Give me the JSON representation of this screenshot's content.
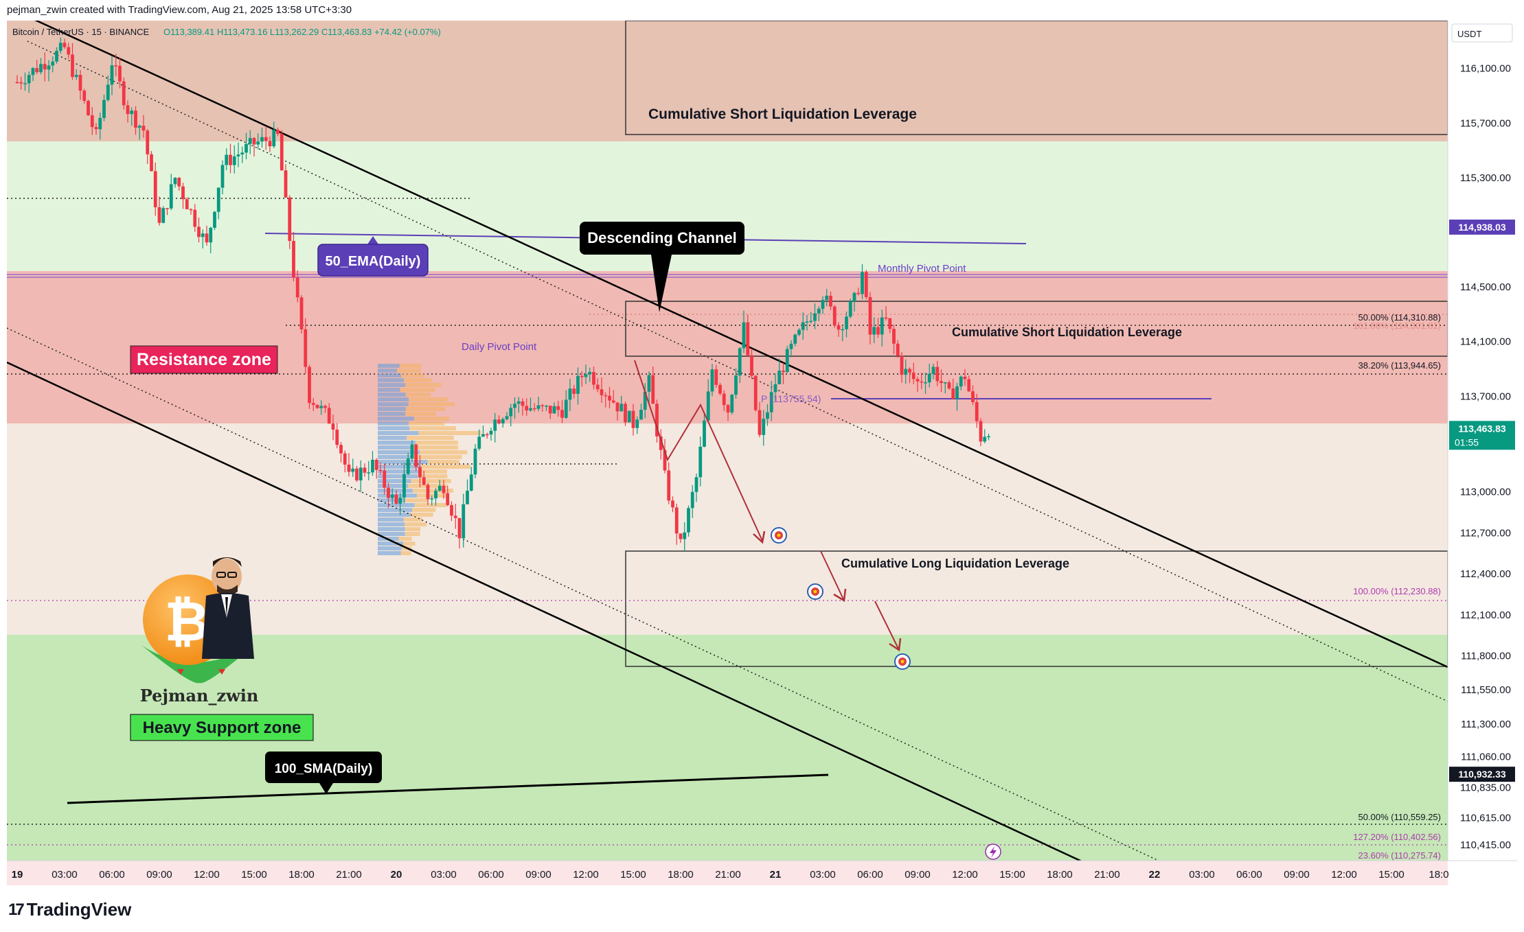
{
  "header": {
    "attribution": "pejman_zwin created with TradingView.com, Aug 21, 2025 13:58 UTC+3:30",
    "symbol": "Bitcoin / TetherUS · 15 · BINANCE",
    "ohlc": "O113,389.41 H113,473.16 L113,262.29 C113,463.83 +74.42 (+0.07%)"
  },
  "currency": "USDT",
  "brand": {
    "logo_glyph": "17",
    "name": "TradingView"
  },
  "price_axis": {
    "ticks": [
      "116,100.00",
      "115,700.00",
      "115,300.00",
      "114,500.00",
      "114,100.00",
      "113,700.00",
      "113,000.00",
      "112,700.00",
      "112,400.00",
      "112,100.00",
      "111,800.00",
      "111,550.00",
      "111,300.00",
      "111,060.00",
      "110,835.00",
      "110,615.00",
      "110,415.00"
    ],
    "badges": [
      {
        "price": "114,938.03",
        "color": "#5b3fb6"
      },
      {
        "price": "113,463.83",
        "sub": "01:55",
        "color": "#089981"
      },
      {
        "price": "110,932.33",
        "color": "#131722"
      }
    ]
  },
  "time_axis": [
    "19",
    "03:00",
    "06:00",
    "09:00",
    "12:00",
    "15:00",
    "18:00",
    "21:00",
    "20",
    "03:00",
    "06:00",
    "09:00",
    "12:00",
    "15:00",
    "18:00",
    "21:00",
    "21",
    "03:00",
    "06:00",
    "09:00",
    "12:00",
    "15:00",
    "18:00",
    "21:00",
    "22",
    "03:00",
    "06:00",
    "09:00",
    "12:00",
    "15:00",
    "18:0"
  ],
  "annotations": {
    "short_liq_top": "Cumulative Short Liquidation Leverage",
    "short_liq_mid": "Cumulative Short Liquidation Leverage",
    "long_liq": "Cumulative Long Liquidation Leverage",
    "descending_channel": "Descending Channel",
    "ema": "50_EMA(Daily)",
    "sma": "100_SMA(Daily)",
    "resistance": "Resistance zone",
    "support": "Heavy Support zone",
    "monthly_pivot": "Monthly Pivot Point",
    "daily_pivot": "Daily Pivot Point",
    "pivot_p": "P (113755.54)",
    "author": "Pejman_zwin",
    "coin_glyph": "₿",
    "fib": [
      "50.00% (114,310.88)",
      "38.20% (113,944.65)",
      "100.00% (112,230.88)",
      "50.00% (110,559.25)",
      "127.20% (110,402.56)",
      "23.60% (110,275.74)"
    ],
    "fib_faint": "161.80% (114,301.81)"
  },
  "colors": {
    "up": "#089981",
    "down": "#f23645",
    "resistance_fill": "#e9a9a6",
    "support_fill": "#c3e7b4",
    "ema_line": "#5b3fb6",
    "channel": "#000000"
  },
  "chart_data": {
    "type": "candlestick",
    "symbol": "Bitcoin / TetherUS",
    "interval": "15",
    "exchange": "BINANCE",
    "last": {
      "open": 113389.41,
      "high": 113473.16,
      "low": 113262.29,
      "close": 113463.83,
      "change": 74.42,
      "change_pct": 0.07
    },
    "ylim": [
      110300,
      116450
    ],
    "price_path": [
      [
        "19 00:00",
        116000
      ],
      [
        "19 03:00",
        116250
      ],
      [
        "19 05:00",
        115600
      ],
      [
        "19 06:00",
        116150
      ],
      [
        "19 07:00",
        115800
      ],
      [
        "19 08:00",
        115650
      ],
      [
        "19 09:00",
        114950
      ],
      [
        "19 10:00",
        115300
      ],
      [
        "19 12:00",
        114800
      ],
      [
        "19 13:00",
        115400
      ],
      [
        "19 15:00",
        115550
      ],
      [
        "19 16:30",
        115600
      ],
      [
        "19 17:30",
        114600
      ],
      [
        "19 18:30",
        113700
      ],
      [
        "19 20:00",
        113500
      ],
      [
        "19 21:00",
        113100
      ],
      [
        "19 22:30",
        113200
      ],
      [
        "20 00:00",
        112900
      ],
      [
        "20 01:00",
        113300
      ],
      [
        "20 02:00",
        112950
      ],
      [
        "20 03:00",
        113050
      ],
      [
        "20 04:00",
        112700
      ],
      [
        "20 05:00",
        113300
      ],
      [
        "20 06:00",
        113500
      ],
      [
        "20 07:30",
        113650
      ],
      [
        "20 09:00",
        113600
      ],
      [
        "20 10:30",
        113600
      ],
      [
        "20 12:00",
        113900
      ],
      [
        "20 13:30",
        113700
      ],
      [
        "20 15:00",
        113500
      ],
      [
        "20 16:00",
        113800
      ],
      [
        "20 17:00",
        113100
      ],
      [
        "20 18:00",
        112600
      ],
      [
        "20 19:00",
        113100
      ],
      [
        "20 20:00",
        113900
      ],
      [
        "20 21:00",
        113600
      ],
      [
        "20 22:00",
        114200
      ],
      [
        "20 23:00",
        113400
      ],
      [
        "21 00:00",
        113800
      ],
      [
        "21 01:00",
        114050
      ],
      [
        "21 02:00",
        114250
      ],
      [
        "21 03:00",
        114450
      ],
      [
        "21 04:00",
        114200
      ],
      [
        "21 05:00",
        114400
      ],
      [
        "21 05:30",
        114600
      ],
      [
        "21 06:00",
        114150
      ],
      [
        "21 07:00",
        114250
      ],
      [
        "21 08:00",
        113900
      ],
      [
        "21 09:00",
        113800
      ],
      [
        "21 10:00",
        113900
      ],
      [
        "21 11:00",
        113700
      ],
      [
        "21 12:00",
        113850
      ],
      [
        "21 13:00",
        113400
      ],
      [
        "21 13:30",
        113463.83
      ]
    ],
    "horizontal_levels": {
      "monthly_pivot": 114840,
      "daily_pivot_P": 113755.54,
      "ema50_daily": 114938.03,
      "sma100_daily": 110932.33,
      "fib": [
        {
          "label": "50.00%",
          "value": 114310.88
        },
        {
          "label": "38.20%",
          "value": 113944.65
        },
        {
          "label": "100.00%",
          "value": 112230.88
        },
        {
          "label": "50.00%",
          "value": 110559.25
        },
        {
          "label": "127.20%",
          "value": 110402.56
        },
        {
          "label": "23.60%",
          "value": 110275.74
        }
      ]
    },
    "zones": [
      {
        "name": "Resistance zone",
        "from": 113555,
        "to": 115750
      },
      {
        "name": "Heavy Support zone",
        "to": 111950
      },
      {
        "name": "Cumulative Short Liquidation Leverage",
        "from": 115750,
        "to": 116450
      },
      {
        "name": "Cumulative Short Liquidation Leverage",
        "from": 114085,
        "to": 114470
      },
      {
        "name": "Cumulative Long Liquidation Leverage",
        "from": 111790,
        "to": 112590
      }
    ]
  }
}
